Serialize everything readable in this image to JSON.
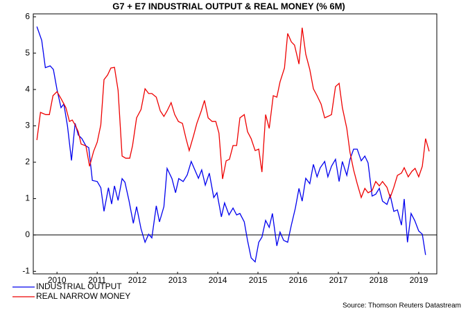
{
  "chart_data": {
    "type": "line",
    "title": "G7 + E7 INDUSTRIAL OUTPUT & REAL MONEY (% 6M)",
    "source": "Source: Thomson Reuters Datastream",
    "xlim": [
      2009.91,
      2019.95
    ],
    "ylim": [
      -1.07,
      6.08
    ],
    "yticks": [
      -1,
      0,
      1,
      2,
      3,
      4,
      5,
      6
    ],
    "xticks": [
      {
        "value": 2010.5,
        "label": "2010"
      },
      {
        "value": 2011.5,
        "label": "2011"
      },
      {
        "value": 2012.5,
        "label": "2012"
      },
      {
        "value": 2013.5,
        "label": "2013"
      },
      {
        "value": 2014.5,
        "label": "2014"
      },
      {
        "value": 2015.5,
        "label": "2015"
      },
      {
        "value": 2016.5,
        "label": "2016"
      },
      {
        "value": 2017.5,
        "label": "2017"
      },
      {
        "value": 2018.5,
        "label": "2018"
      },
      {
        "value": 2019.5,
        "label": "2019"
      }
    ],
    "zero_line": true,
    "series": [
      {
        "name": "INDUSTRIAL OUTPUT",
        "color": "#0000ee",
        "x": [
          2010.0,
          2010.12,
          2010.21,
          2010.33,
          2010.41,
          2010.5,
          2010.6,
          2010.67,
          2010.76,
          2010.86,
          2010.95,
          2011.03,
          2011.12,
          2011.22,
          2011.29,
          2011.38,
          2011.5,
          2011.59,
          2011.67,
          2011.78,
          2011.86,
          2011.93,
          2012.02,
          2012.12,
          2012.19,
          2012.29,
          2012.4,
          2012.48,
          2012.59,
          2012.69,
          2012.78,
          2012.86,
          2012.97,
          2013.05,
          2013.16,
          2013.24,
          2013.36,
          2013.45,
          2013.53,
          2013.64,
          2013.74,
          2013.84,
          2013.93,
          2014.02,
          2014.1,
          2014.19,
          2014.29,
          2014.4,
          2014.48,
          2014.59,
          2014.67,
          2014.78,
          2014.88,
          2014.97,
          2015.05,
          2015.16,
          2015.24,
          2015.33,
          2015.43,
          2015.52,
          2015.6,
          2015.69,
          2015.78,
          2015.86,
          2015.97,
          2016.05,
          2016.14,
          2016.24,
          2016.33,
          2016.43,
          2016.52,
          2016.6,
          2016.69,
          2016.79,
          2016.88,
          2016.97,
          2017.05,
          2017.16,
          2017.24,
          2017.33,
          2017.43,
          2017.52,
          2017.6,
          2017.71,
          2017.79,
          2017.88,
          2017.97,
          2018.07,
          2018.16,
          2018.24,
          2018.34,
          2018.43,
          2018.52,
          2018.6,
          2018.71,
          2018.79,
          2018.88,
          2018.97,
          2019.07,
          2019.14,
          2019.22,
          2019.31,
          2019.4,
          2019.5,
          2019.59,
          2019.67
        ],
        "values": [
          5.73,
          5.35,
          4.6,
          4.65,
          4.55,
          4.0,
          3.5,
          3.6,
          3.0,
          2.05,
          3.07,
          2.75,
          2.65,
          2.45,
          2.4,
          1.5,
          1.47,
          1.3,
          0.65,
          1.3,
          0.85,
          1.35,
          0.95,
          1.55,
          1.45,
          0.95,
          0.32,
          0.78,
          0.17,
          -0.2,
          0.02,
          -0.08,
          0.8,
          0.36,
          0.78,
          1.83,
          1.55,
          1.16,
          1.55,
          1.47,
          1.65,
          2.02,
          1.79,
          1.56,
          1.79,
          1.37,
          1.7,
          1.03,
          1.16,
          0.5,
          0.88,
          0.55,
          0.74,
          0.55,
          0.59,
          0.36,
          -0.15,
          -0.63,
          -0.74,
          -0.2,
          -0.06,
          0.4,
          0.21,
          0.59,
          -0.3,
          0.08,
          -0.15,
          -0.2,
          0.27,
          0.74,
          1.28,
          0.93,
          1.56,
          1.41,
          1.94,
          1.6,
          1.85,
          2.02,
          1.6,
          1.89,
          2.08,
          1.47,
          2.02,
          1.64,
          2.08,
          2.36,
          2.36,
          2.04,
          2.17,
          1.98,
          1.07,
          1.12,
          1.28,
          0.93,
          0.84,
          1.09,
          0.65,
          0.69,
          0.27,
          0.99,
          -0.2,
          0.59,
          0.4,
          0.11,
          0.02,
          -0.55
        ]
      },
      {
        "name": "REAL NARROW MONEY",
        "color": "#ee0000",
        "x": [
          2010.0,
          2010.09,
          2010.22,
          2010.31,
          2010.4,
          2010.5,
          2010.6,
          2010.72,
          2010.81,
          2010.88,
          2010.95,
          2011.03,
          2011.1,
          2011.22,
          2011.31,
          2011.41,
          2011.5,
          2011.59,
          2011.67,
          2011.76,
          2011.84,
          2011.93,
          2012.02,
          2012.12,
          2012.21,
          2012.31,
          2012.38,
          2012.48,
          2012.59,
          2012.69,
          2012.78,
          2012.86,
          2012.97,
          2013.07,
          2013.16,
          2013.24,
          2013.34,
          2013.43,
          2013.52,
          2013.62,
          2013.71,
          2013.79,
          2013.9,
          2013.98,
          2014.09,
          2014.17,
          2014.26,
          2014.36,
          2014.45,
          2014.53,
          2014.62,
          2014.71,
          2014.79,
          2014.88,
          2014.97,
          2015.05,
          2015.16,
          2015.24,
          2015.33,
          2015.43,
          2015.52,
          2015.6,
          2015.69,
          2015.78,
          2015.88,
          2015.97,
          2016.05,
          2016.16,
          2016.24,
          2016.33,
          2016.41,
          2016.52,
          2016.6,
          2016.69,
          2016.79,
          2016.88,
          2016.97,
          2017.07,
          2017.16,
          2017.24,
          2017.33,
          2017.43,
          2017.52,
          2017.6,
          2017.71,
          2017.79,
          2017.88,
          2017.97,
          2018.07,
          2018.16,
          2018.24,
          2018.34,
          2018.43,
          2018.52,
          2018.6,
          2018.71,
          2018.79,
          2018.88,
          2018.97,
          2019.07,
          2019.14,
          2019.24,
          2019.33,
          2019.41,
          2019.5,
          2019.59,
          2019.67,
          2019.76
        ],
        "values": [
          2.61,
          3.37,
          3.31,
          3.31,
          3.83,
          3.94,
          3.75,
          3.5,
          3.12,
          3.16,
          3.03,
          2.84,
          2.5,
          2.45,
          1.89,
          2.3,
          2.55,
          3.03,
          4.27,
          4.4,
          4.59,
          4.61,
          3.98,
          2.17,
          2.11,
          2.11,
          2.46,
          3.22,
          3.45,
          4.02,
          3.89,
          3.89,
          3.79,
          3.41,
          3.26,
          3.41,
          3.64,
          3.31,
          3.12,
          3.07,
          2.65,
          2.32,
          2.74,
          3.07,
          3.41,
          3.7,
          3.22,
          3.12,
          3.12,
          2.8,
          1.54,
          2.04,
          2.08,
          2.46,
          2.46,
          3.22,
          3.31,
          2.84,
          2.65,
          2.32,
          2.36,
          1.73,
          3.31,
          2.93,
          3.83,
          3.79,
          4.21,
          4.59,
          5.54,
          5.31,
          5.22,
          4.7,
          5.7,
          4.97,
          4.55,
          4.02,
          3.83,
          3.6,
          3.22,
          3.26,
          3.31,
          4.08,
          4.17,
          3.5,
          2.93,
          2.27,
          1.79,
          1.41,
          1.03,
          1.28,
          1.16,
          1.22,
          1.47,
          1.35,
          1.47,
          1.31,
          1.03,
          1.31,
          1.64,
          1.7,
          1.85,
          1.6,
          1.75,
          1.83,
          1.6,
          1.89,
          2.65,
          2.3
        ]
      }
    ]
  }
}
